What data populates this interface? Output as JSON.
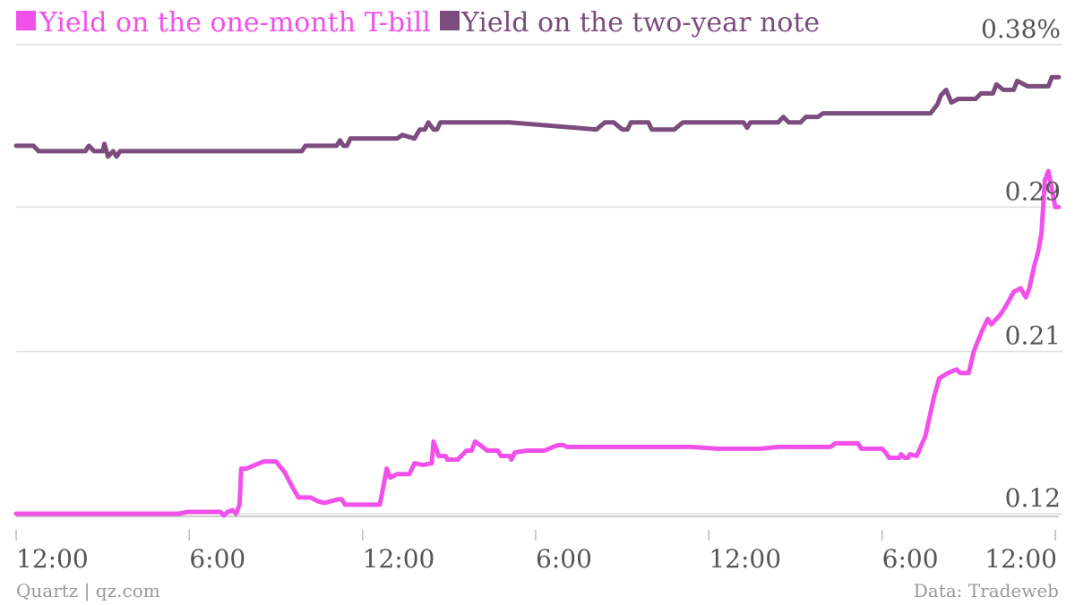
{
  "chart_data": {
    "type": "line",
    "title": "",
    "xlabel": "",
    "ylabel": "",
    "yticks": [
      "0.12",
      "0.21",
      "0.29",
      "0.38%"
    ],
    "ytick_values": [
      0.12,
      0.21,
      0.29,
      0.38
    ],
    "ylim": [
      0.12,
      0.38
    ],
    "grid": true,
    "legend_position": "top-left",
    "x_unit": "hours",
    "xlim": [
      0,
      60
    ],
    "xticks": [
      {
        "value": 0,
        "label": "12:00"
      },
      {
        "value": 10,
        "label": "6:00"
      },
      {
        "value": 20,
        "label": "12:00"
      },
      {
        "value": 30,
        "label": "6:00"
      },
      {
        "value": 40,
        "label": "12:00"
      },
      {
        "value": 50,
        "label": "6:00"
      },
      {
        "value": 60,
        "label": "12:00"
      }
    ],
    "series": [
      {
        "name": "Yield on the one-month T-bill",
        "color": "#f250ea",
        "points": [
          [
            0.0,
            0.12
          ],
          [
            9.4,
            0.12
          ],
          [
            9.9,
            0.121
          ],
          [
            11.8,
            0.121
          ],
          [
            12.0,
            0.119
          ],
          [
            12.2,
            0.121
          ],
          [
            12.5,
            0.122
          ],
          [
            12.7,
            0.12
          ],
          [
            12.9,
            0.125
          ],
          [
            13.0,
            0.145
          ],
          [
            13.3,
            0.145
          ],
          [
            14.3,
            0.149
          ],
          [
            15.0,
            0.149
          ],
          [
            15.5,
            0.143
          ],
          [
            16.0,
            0.134
          ],
          [
            16.3,
            0.129
          ],
          [
            17.0,
            0.129
          ],
          [
            17.4,
            0.127
          ],
          [
            17.8,
            0.126
          ],
          [
            18.6,
            0.128
          ],
          [
            18.8,
            0.128
          ],
          [
            19.0,
            0.125
          ],
          [
            21.0,
            0.125
          ],
          [
            21.2,
            0.135
          ],
          [
            21.4,
            0.145
          ],
          [
            21.6,
            0.14
          ],
          [
            22.0,
            0.142
          ],
          [
            22.7,
            0.142
          ],
          [
            23.0,
            0.148
          ],
          [
            23.5,
            0.147
          ],
          [
            24.0,
            0.148
          ],
          [
            24.1,
            0.16
          ],
          [
            24.4,
            0.152
          ],
          [
            24.8,
            0.152
          ],
          [
            24.9,
            0.15
          ],
          [
            25.5,
            0.15
          ],
          [
            26.0,
            0.155
          ],
          [
            26.3,
            0.155
          ],
          [
            26.5,
            0.16
          ],
          [
            26.8,
            0.158
          ],
          [
            27.2,
            0.155
          ],
          [
            27.8,
            0.155
          ],
          [
            28.0,
            0.152
          ],
          [
            28.5,
            0.152
          ],
          [
            28.6,
            0.15
          ],
          [
            28.8,
            0.154
          ],
          [
            29.5,
            0.155
          ],
          [
            30.5,
            0.155
          ],
          [
            31.0,
            0.157
          ],
          [
            31.3,
            0.158
          ],
          [
            31.6,
            0.158
          ],
          [
            31.8,
            0.157
          ],
          [
            39.0,
            0.157
          ],
          [
            40.5,
            0.156
          ],
          [
            43.0,
            0.156
          ],
          [
            44.0,
            0.157
          ],
          [
            47.0,
            0.157
          ],
          [
            47.3,
            0.159
          ],
          [
            48.6,
            0.159
          ],
          [
            48.8,
            0.156
          ],
          [
            50.0,
            0.156
          ],
          [
            50.2,
            0.154
          ],
          [
            50.4,
            0.151
          ],
          [
            51.0,
            0.151
          ],
          [
            51.1,
            0.153
          ],
          [
            51.3,
            0.151
          ],
          [
            51.5,
            0.151
          ],
          [
            51.6,
            0.153
          ],
          [
            52.0,
            0.152
          ],
          [
            52.5,
            0.163
          ],
          [
            53.0,
            0.185
          ],
          [
            53.3,
            0.195
          ],
          [
            53.8,
            0.198
          ],
          [
            54.3,
            0.2
          ],
          [
            54.5,
            0.198
          ],
          [
            55.0,
            0.198
          ],
          [
            55.3,
            0.21
          ],
          [
            55.5,
            0.215
          ],
          [
            55.8,
            0.222
          ],
          [
            56.1,
            0.228
          ],
          [
            56.3,
            0.225
          ],
          [
            56.8,
            0.23
          ],
          [
            57.2,
            0.236
          ],
          [
            57.6,
            0.243
          ],
          [
            58.0,
            0.245
          ],
          [
            58.3,
            0.24
          ],
          [
            58.5,
            0.245
          ],
          [
            58.8,
            0.258
          ],
          [
            59.0,
            0.265
          ],
          [
            59.2,
            0.275
          ],
          [
            59.4,
            0.305
          ],
          [
            59.6,
            0.31
          ],
          [
            59.8,
            0.3
          ],
          [
            60.0,
            0.29
          ],
          [
            60.2,
            0.29
          ]
        ]
      },
      {
        "name": "Yield on the two-year note",
        "color": "#7b4c7d",
        "points": [
          [
            0.0,
            0.324
          ],
          [
            1.0,
            0.324
          ],
          [
            1.3,
            0.321
          ],
          [
            4.0,
            0.321
          ],
          [
            4.2,
            0.324
          ],
          [
            4.5,
            0.321
          ],
          [
            5.0,
            0.321
          ],
          [
            5.1,
            0.325
          ],
          [
            5.3,
            0.318
          ],
          [
            5.6,
            0.321
          ],
          [
            5.8,
            0.318
          ],
          [
            6.0,
            0.321
          ],
          [
            16.5,
            0.321
          ],
          [
            16.7,
            0.324
          ],
          [
            18.5,
            0.324
          ],
          [
            18.7,
            0.327
          ],
          [
            18.9,
            0.324
          ],
          [
            19.1,
            0.324
          ],
          [
            19.3,
            0.328
          ],
          [
            20.0,
            0.328
          ],
          [
            22.0,
            0.328
          ],
          [
            22.3,
            0.33
          ],
          [
            23.0,
            0.328
          ],
          [
            23.3,
            0.333
          ],
          [
            23.6,
            0.333
          ],
          [
            23.8,
            0.337
          ],
          [
            24.1,
            0.333
          ],
          [
            24.3,
            0.333
          ],
          [
            24.5,
            0.337
          ],
          [
            24.7,
            0.337
          ],
          [
            26.0,
            0.337
          ],
          [
            28.5,
            0.337
          ],
          [
            33.5,
            0.333
          ],
          [
            34.0,
            0.337
          ],
          [
            34.5,
            0.337
          ],
          [
            35.0,
            0.333
          ],
          [
            35.3,
            0.333
          ],
          [
            35.5,
            0.337
          ],
          [
            36.5,
            0.337
          ],
          [
            36.7,
            0.333
          ],
          [
            38.0,
            0.333
          ],
          [
            38.5,
            0.337
          ],
          [
            42.0,
            0.337
          ],
          [
            42.2,
            0.334
          ],
          [
            42.4,
            0.337
          ],
          [
            44.0,
            0.337
          ],
          [
            44.3,
            0.34
          ],
          [
            44.6,
            0.337
          ],
          [
            45.3,
            0.337
          ],
          [
            45.6,
            0.34
          ],
          [
            46.3,
            0.34
          ],
          [
            46.6,
            0.342
          ],
          [
            52.8,
            0.342
          ],
          [
            53.2,
            0.347
          ],
          [
            53.4,
            0.352
          ],
          [
            53.7,
            0.355
          ],
          [
            54.0,
            0.348
          ],
          [
            54.4,
            0.35
          ],
          [
            55.4,
            0.35
          ],
          [
            55.7,
            0.353
          ],
          [
            56.4,
            0.353
          ],
          [
            56.6,
            0.358
          ],
          [
            57.0,
            0.355
          ],
          [
            57.6,
            0.355
          ],
          [
            57.8,
            0.36
          ],
          [
            58.4,
            0.357
          ],
          [
            59.6,
            0.357
          ],
          [
            59.8,
            0.362
          ],
          [
            60.2,
            0.362
          ]
        ]
      }
    ]
  },
  "footer": {
    "source_left": "Quartz | qz.com",
    "source_right": "Data: Tradeweb"
  }
}
